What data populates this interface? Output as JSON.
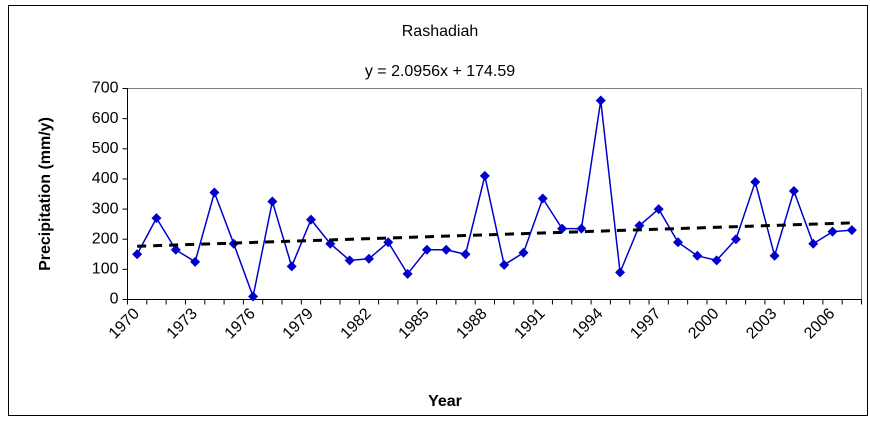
{
  "chart_data": {
    "type": "line",
    "title": "Rashadiah",
    "xlabel": "Year",
    "ylabel": "Precipitation (mm/y)",
    "categories": [
      "1970",
      null,
      null,
      "1973",
      null,
      null,
      "1976",
      null,
      null,
      "1979",
      null,
      null,
      "1982",
      null,
      null,
      "1985",
      null,
      null,
      "1988",
      null,
      null,
      "1991",
      null,
      null,
      "1994",
      null,
      null,
      "1997",
      null,
      null,
      "2000",
      null,
      null,
      "2003",
      null,
      null,
      "2006",
      null
    ],
    "series": [
      {
        "color": "#0000cc",
        "values": [
          150,
          270,
          165,
          125,
          355,
          185,
          10,
          325,
          110,
          265,
          185,
          130,
          135,
          190,
          85,
          165,
          165,
          150,
          410,
          115,
          155,
          335,
          235,
          235,
          660,
          90,
          245,
          300,
          190,
          145,
          130,
          200,
          390,
          145,
          360,
          185,
          225,
          230
        ]
      }
    ],
    "trendline": {
      "label": "y = 2.0956x + 174.59",
      "slope": 2.0956,
      "intercept": 174.59,
      "color": "#000000"
    },
    "ylim": [
      0,
      700
    ],
    "yticks": [
      0,
      100,
      200,
      300,
      400,
      500,
      600,
      700
    ]
  }
}
